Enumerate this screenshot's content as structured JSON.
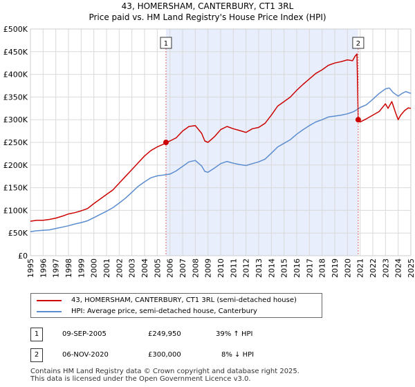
{
  "title_line1": "43, HOMERSHAM, CANTERBURY, CT1 3RL",
  "title_line2": "Price paid vs. HM Land Registry's House Price Index (HPI)",
  "colors": {
    "red": "#cc0000",
    "blue": "#5b8ccf",
    "shade": "#e8eefb",
    "grid": "#d9d9d9",
    "marker_line": "#e06666"
  },
  "chart_data": {
    "type": "line",
    "xlim": [
      1995,
      2025
    ],
    "ylim": [
      0,
      500000
    ],
    "x_ticks": [
      "1995",
      "1996",
      "1997",
      "1998",
      "1999",
      "2000",
      "2001",
      "2002",
      "2003",
      "2004",
      "2005",
      "2006",
      "2007",
      "2008",
      "2009",
      "2010",
      "2011",
      "2012",
      "2013",
      "2014",
      "2015",
      "2016",
      "2017",
      "2018",
      "2019",
      "2020",
      "2021",
      "2022",
      "2023",
      "2024",
      "2025"
    ],
    "y_ticks": [
      {
        "value": 0,
        "label": "£0"
      },
      {
        "value": 50000,
        "label": "£50K"
      },
      {
        "value": 100000,
        "label": "£100K"
      },
      {
        "value": 150000,
        "label": "£150K"
      },
      {
        "value": 200000,
        "label": "£200K"
      },
      {
        "value": 250000,
        "label": "£250K"
      },
      {
        "value": 300000,
        "label": "£300K"
      },
      {
        "value": 350000,
        "label": "£350K"
      },
      {
        "value": 400000,
        "label": "£400K"
      },
      {
        "value": 450000,
        "label": "£450K"
      },
      {
        "value": 500000,
        "label": "£500K"
      }
    ],
    "shaded_region": [
      2005.69,
      2020.85
    ],
    "markers": [
      {
        "label": "1",
        "x": 2005.69,
        "y": 249950
      },
      {
        "label": "2",
        "x": 2020.85,
        "y": 300000
      }
    ],
    "series": [
      {
        "name": "43, HOMERSHAM, CANTERBURY, CT1 3RL (semi-detached house)",
        "color": "#cc0000",
        "points": [
          [
            1995.0,
            76000
          ],
          [
            1995.5,
            78000
          ],
          [
            1996.0,
            78000
          ],
          [
            1996.5,
            80000
          ],
          [
            1997.0,
            83000
          ],
          [
            1997.5,
            87000
          ],
          [
            1998.0,
            92000
          ],
          [
            1998.5,
            95000
          ],
          [
            1999.0,
            99000
          ],
          [
            1999.5,
            104000
          ],
          [
            2000.0,
            115000
          ],
          [
            2000.5,
            125000
          ],
          [
            2001.0,
            135000
          ],
          [
            2001.5,
            145000
          ],
          [
            2002.0,
            160000
          ],
          [
            2002.5,
            175000
          ],
          [
            2003.0,
            190000
          ],
          [
            2003.5,
            205000
          ],
          [
            2004.0,
            220000
          ],
          [
            2004.5,
            232000
          ],
          [
            2005.0,
            240000
          ],
          [
            2005.5,
            246000
          ],
          [
            2005.69,
            249950
          ],
          [
            2006.0,
            253000
          ],
          [
            2006.5,
            260000
          ],
          [
            2007.0,
            275000
          ],
          [
            2007.5,
            285000
          ],
          [
            2008.0,
            287000
          ],
          [
            2008.5,
            270000
          ],
          [
            2008.75,
            253000
          ],
          [
            2009.0,
            250000
          ],
          [
            2009.5,
            262000
          ],
          [
            2010.0,
            278000
          ],
          [
            2010.5,
            285000
          ],
          [
            2011.0,
            280000
          ],
          [
            2011.5,
            276000
          ],
          [
            2012.0,
            272000
          ],
          [
            2012.5,
            280000
          ],
          [
            2013.0,
            283000
          ],
          [
            2013.5,
            292000
          ],
          [
            2014.0,
            310000
          ],
          [
            2014.5,
            330000
          ],
          [
            2015.0,
            340000
          ],
          [
            2015.5,
            350000
          ],
          [
            2016.0,
            365000
          ],
          [
            2016.5,
            378000
          ],
          [
            2017.0,
            390000
          ],
          [
            2017.5,
            402000
          ],
          [
            2018.0,
            410000
          ],
          [
            2018.5,
            420000
          ],
          [
            2019.0,
            425000
          ],
          [
            2019.5,
            428000
          ],
          [
            2020.0,
            432000
          ],
          [
            2020.4,
            430000
          ],
          [
            2020.6,
            440000
          ],
          [
            2020.75,
            445000
          ],
          [
            2020.85,
            300000
          ],
          [
            2021.0,
            295000
          ],
          [
            2021.5,
            302000
          ],
          [
            2022.0,
            310000
          ],
          [
            2022.5,
            318000
          ],
          [
            2023.0,
            335000
          ],
          [
            2023.2,
            325000
          ],
          [
            2023.5,
            340000
          ],
          [
            2023.8,
            315000
          ],
          [
            2024.0,
            300000
          ],
          [
            2024.2,
            310000
          ],
          [
            2024.5,
            320000
          ],
          [
            2024.8,
            326000
          ],
          [
            2025.0,
            325000
          ]
        ]
      },
      {
        "name": "HPI: Average price, semi-detached house, Canterbury",
        "color": "#5b8ccf",
        "points": [
          [
            1995.0,
            53000
          ],
          [
            1995.5,
            55000
          ],
          [
            1996.0,
            56000
          ],
          [
            1996.5,
            57000
          ],
          [
            1997.0,
            60000
          ],
          [
            1997.5,
            63000
          ],
          [
            1998.0,
            66000
          ],
          [
            1998.5,
            70000
          ],
          [
            1999.0,
            73000
          ],
          [
            1999.5,
            77000
          ],
          [
            2000.0,
            84000
          ],
          [
            2000.5,
            91000
          ],
          [
            2001.0,
            98000
          ],
          [
            2001.5,
            106000
          ],
          [
            2002.0,
            116000
          ],
          [
            2002.5,
            127000
          ],
          [
            2003.0,
            140000
          ],
          [
            2003.5,
            153000
          ],
          [
            2004.0,
            163000
          ],
          [
            2004.5,
            172000
          ],
          [
            2005.0,
            176000
          ],
          [
            2005.5,
            178000
          ],
          [
            2006.0,
            180000
          ],
          [
            2006.5,
            187000
          ],
          [
            2007.0,
            197000
          ],
          [
            2007.5,
            207000
          ],
          [
            2008.0,
            210000
          ],
          [
            2008.5,
            198000
          ],
          [
            2008.75,
            186000
          ],
          [
            2009.0,
            184000
          ],
          [
            2009.5,
            193000
          ],
          [
            2010.0,
            203000
          ],
          [
            2010.5,
            208000
          ],
          [
            2011.0,
            204000
          ],
          [
            2011.5,
            201000
          ],
          [
            2012.0,
            199000
          ],
          [
            2012.5,
            203000
          ],
          [
            2013.0,
            207000
          ],
          [
            2013.5,
            213000
          ],
          [
            2014.0,
            226000
          ],
          [
            2014.5,
            240000
          ],
          [
            2015.0,
            248000
          ],
          [
            2015.5,
            256000
          ],
          [
            2016.0,
            268000
          ],
          [
            2016.5,
            278000
          ],
          [
            2017.0,
            287000
          ],
          [
            2017.5,
            295000
          ],
          [
            2018.0,
            300000
          ],
          [
            2018.5,
            306000
          ],
          [
            2019.0,
            308000
          ],
          [
            2019.5,
            310000
          ],
          [
            2020.0,
            313000
          ],
          [
            2020.5,
            318000
          ],
          [
            2020.85,
            324000
          ],
          [
            2021.0,
            327000
          ],
          [
            2021.5,
            333000
          ],
          [
            2022.0,
            345000
          ],
          [
            2022.5,
            358000
          ],
          [
            2023.0,
            368000
          ],
          [
            2023.3,
            370000
          ],
          [
            2023.6,
            360000
          ],
          [
            2024.0,
            352000
          ],
          [
            2024.3,
            358000
          ],
          [
            2024.6,
            362000
          ],
          [
            2025.0,
            358000
          ]
        ]
      }
    ]
  },
  "legend": {
    "red_label": "43, HOMERSHAM, CANTERBURY, CT1 3RL (semi-detached house)",
    "blue_label": "HPI: Average price, semi-detached house, Canterbury"
  },
  "transactions": [
    {
      "badge": "1",
      "date": "09-SEP-2005",
      "price": "£249,950",
      "delta": "39% ↑ HPI"
    },
    {
      "badge": "2",
      "date": "06-NOV-2020",
      "price": "£300,000",
      "delta": "8% ↓ HPI"
    }
  ],
  "footer_line1": "Contains HM Land Registry data © Crown copyright and database right 2025.",
  "footer_line2": "This data is licensed under the Open Government Licence v3.0."
}
